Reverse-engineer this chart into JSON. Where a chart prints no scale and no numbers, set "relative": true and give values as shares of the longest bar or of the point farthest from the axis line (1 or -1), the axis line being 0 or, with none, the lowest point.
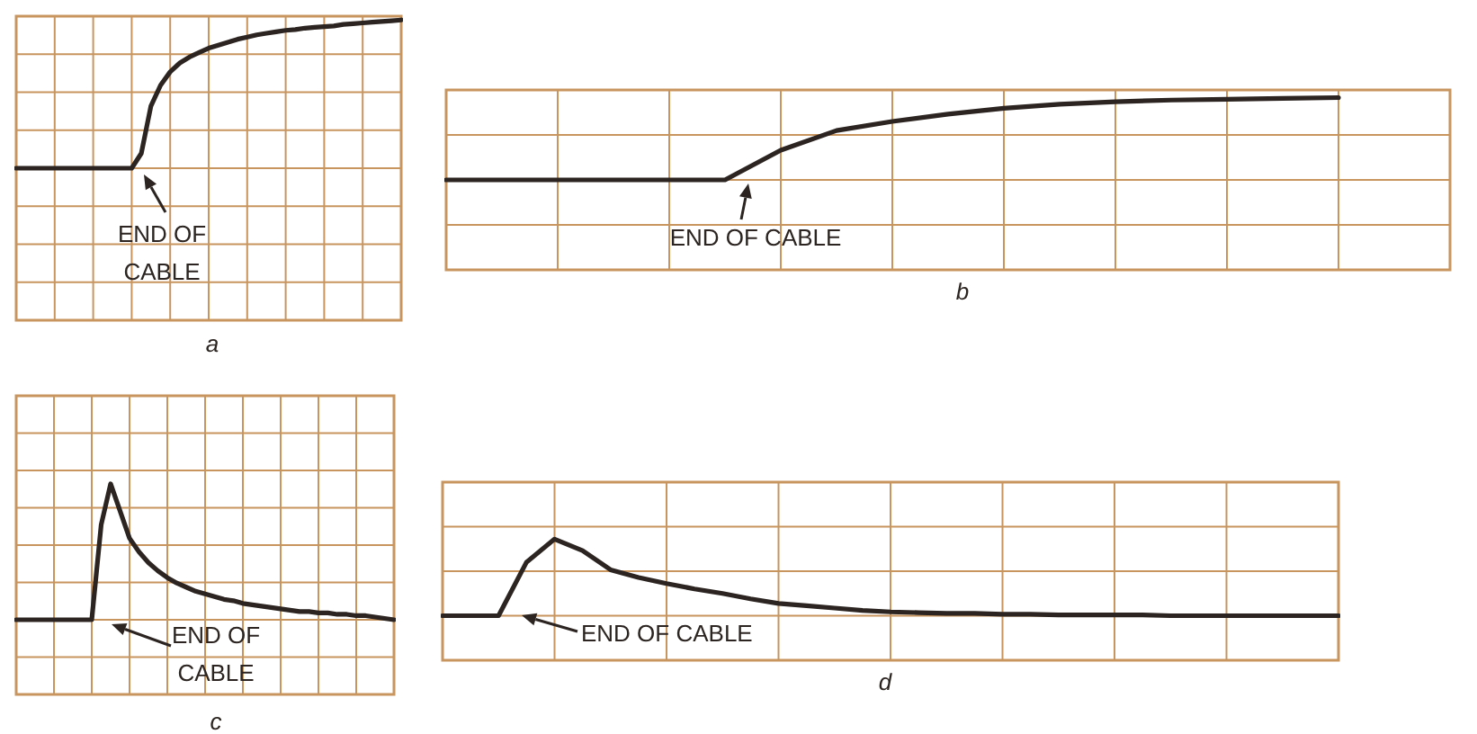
{
  "chart_data": [
    {
      "type": "line",
      "relative": true,
      "grid": true,
      "xlabel": "a",
      "annotations": [
        "END OF\nCABLE"
      ],
      "categories": [
        null,
        null,
        null,
        null,
        null,
        null,
        null,
        null,
        null,
        null,
        null,
        null,
        null,
        null,
        null,
        null,
        null,
        null,
        null,
        null,
        null,
        null,
        null,
        null,
        null,
        null,
        null,
        null,
        null,
        null,
        null,
        null,
        null,
        null,
        null,
        null,
        null,
        null,
        null,
        null,
        null
      ],
      "series": [
        {
          "color": "#2b2420",
          "values": [
            0,
            0,
            0,
            0,
            0,
            0,
            0,
            0,
            0,
            0,
            0,
            0,
            0,
            0.1,
            0.42,
            0.56,
            0.65,
            0.71,
            0.75,
            0.78,
            0.81,
            0.83,
            0.85,
            0.87,
            0.885,
            0.9,
            0.91,
            0.92,
            0.93,
            0.935,
            0.945,
            0.95,
            0.955,
            0.96,
            0.97,
            0.975,
            0.98,
            0.985,
            0.99,
            0.995,
            1
          ]
        }
      ]
    },
    {
      "type": "line",
      "relative": true,
      "grid": true,
      "xlabel": "b",
      "annotations": [
        "END OF CABLE"
      ],
      "categories": [
        null,
        null,
        null,
        null,
        null,
        null,
        null,
        null,
        null,
        null,
        null,
        null,
        null,
        null,
        null,
        null,
        null,
        null,
        null
      ],
      "series": [
        {
          "color": "#2b2420",
          "values": [
            0,
            0,
            0,
            0,
            0,
            0,
            0.36,
            0.6,
            0.71,
            0.8,
            0.87,
            0.92,
            0.95,
            0.97,
            0.98,
            0.99,
            1,
            null,
            null
          ]
        }
      ]
    },
    {
      "type": "line",
      "relative": true,
      "grid": true,
      "xlabel": "c",
      "annotations": [
        "END OF\nCABLE"
      ],
      "categories": [
        null,
        null,
        null,
        null,
        null,
        null,
        null,
        null,
        null,
        null,
        null,
        null,
        null,
        null,
        null,
        null,
        null,
        null,
        null,
        null,
        null,
        null,
        null,
        null,
        null,
        null,
        null,
        null,
        null,
        null,
        null,
        null,
        null,
        null,
        null,
        null,
        null,
        null,
        null,
        null,
        null
      ],
      "series": [
        {
          "color": "#2b2420",
          "values": [
            0,
            0,
            0,
            0,
            0,
            0,
            0,
            0,
            0,
            0.7,
            1,
            0.8,
            0.6,
            0.5,
            0.42,
            0.36,
            0.31,
            0.27,
            0.24,
            0.21,
            0.19,
            0.17,
            0.15,
            0.14,
            0.12,
            0.11,
            0.1,
            0.09,
            0.08,
            0.07,
            0.06,
            0.06,
            0.05,
            0.05,
            0.04,
            0.04,
            0.03,
            0.03,
            0.02,
            0.01,
            0
          ]
        }
      ]
    },
    {
      "type": "line",
      "relative": true,
      "grid": true,
      "xlabel": "d",
      "annotations": [
        "END OF CABLE"
      ],
      "categories": [
        null,
        null,
        null,
        null,
        null,
        null,
        null,
        null,
        null,
        null,
        null,
        null,
        null,
        null,
        null,
        null,
        null,
        null,
        null,
        null,
        null,
        null,
        null,
        null,
        null,
        null,
        null,
        null,
        null,
        null,
        null,
        null,
        null
      ],
      "series": [
        {
          "color": "#2b2420",
          "values": [
            0,
            0,
            0,
            0.7,
            1,
            0.85,
            0.6,
            0.5,
            0.42,
            0.35,
            0.29,
            0.22,
            0.16,
            0.13,
            0.1,
            0.07,
            0.05,
            0.04,
            0.03,
            0.03,
            0.02,
            0.02,
            0.01,
            0.01,
            0.01,
            0.01,
            0,
            0,
            0,
            0,
            0,
            0,
            0
          ]
        }
      ]
    }
  ]
}
